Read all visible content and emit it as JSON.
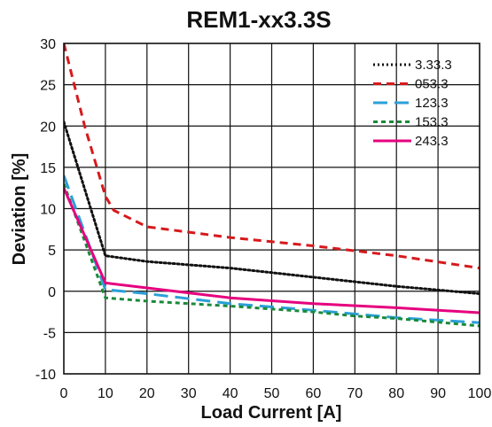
{
  "chart_data": {
    "type": "line",
    "title": "REM1-xx3.3S",
    "xlabel": "Load Current [A]",
    "ylabel": "Deviation [%]",
    "xlim": [
      0,
      100
    ],
    "ylim": [
      -10,
      30
    ],
    "xticks": [
      "0",
      "10",
      "20",
      "30",
      "40",
      "50",
      "60",
      "70",
      "80",
      "90",
      "100"
    ],
    "yticks": [
      "30",
      "25",
      "20",
      "15",
      "10",
      "5",
      "0",
      "-5",
      "-10"
    ],
    "grid": true,
    "legend_position": "top-right",
    "series": [
      {
        "name": "3.33.3",
        "color": "#111111",
        "style": "dotted",
        "points": [
          [
            0,
            20.5
          ],
          [
            10,
            4.3
          ],
          [
            20,
            3.6
          ],
          [
            40,
            2.8
          ],
          [
            60,
            1.7
          ],
          [
            80,
            0.6
          ],
          [
            100,
            -0.3
          ]
        ]
      },
      {
        "name": "053.3",
        "color": "#d7191c",
        "style": "dashed",
        "points": [
          [
            0,
            30
          ],
          [
            5,
            20
          ],
          [
            10,
            11.5
          ],
          [
            12,
            9.8
          ],
          [
            20,
            7.8
          ],
          [
            40,
            6.5
          ],
          [
            60,
            5.5
          ],
          [
            80,
            4.3
          ],
          [
            100,
            2.8
          ]
        ]
      },
      {
        "name": "123.3",
        "color": "#2b9fd8",
        "style": "long-dashed",
        "points": [
          [
            0,
            14
          ],
          [
            10,
            0.2
          ],
          [
            20,
            -0.3
          ],
          [
            40,
            -1.5
          ],
          [
            60,
            -2.3
          ],
          [
            80,
            -3.2
          ],
          [
            100,
            -3.8
          ]
        ]
      },
      {
        "name": "153.3",
        "color": "#1a8a3a",
        "style": "short-dashed",
        "points": [
          [
            0,
            13
          ],
          [
            10,
            -0.8
          ],
          [
            20,
            -1.2
          ],
          [
            40,
            -1.8
          ],
          [
            60,
            -2.5
          ],
          [
            70,
            -3
          ],
          [
            80,
            -3.3
          ],
          [
            100,
            -4.2
          ]
        ]
      },
      {
        "name": "243.3",
        "color": "#e6007e",
        "style": "solid",
        "points": [
          [
            0,
            12.5
          ],
          [
            10,
            1
          ],
          [
            20,
            0.4
          ],
          [
            30,
            -0.2
          ],
          [
            40,
            -0.8
          ],
          [
            60,
            -1.5
          ],
          [
            80,
            -2
          ],
          [
            100,
            -2.6
          ]
        ]
      }
    ]
  }
}
